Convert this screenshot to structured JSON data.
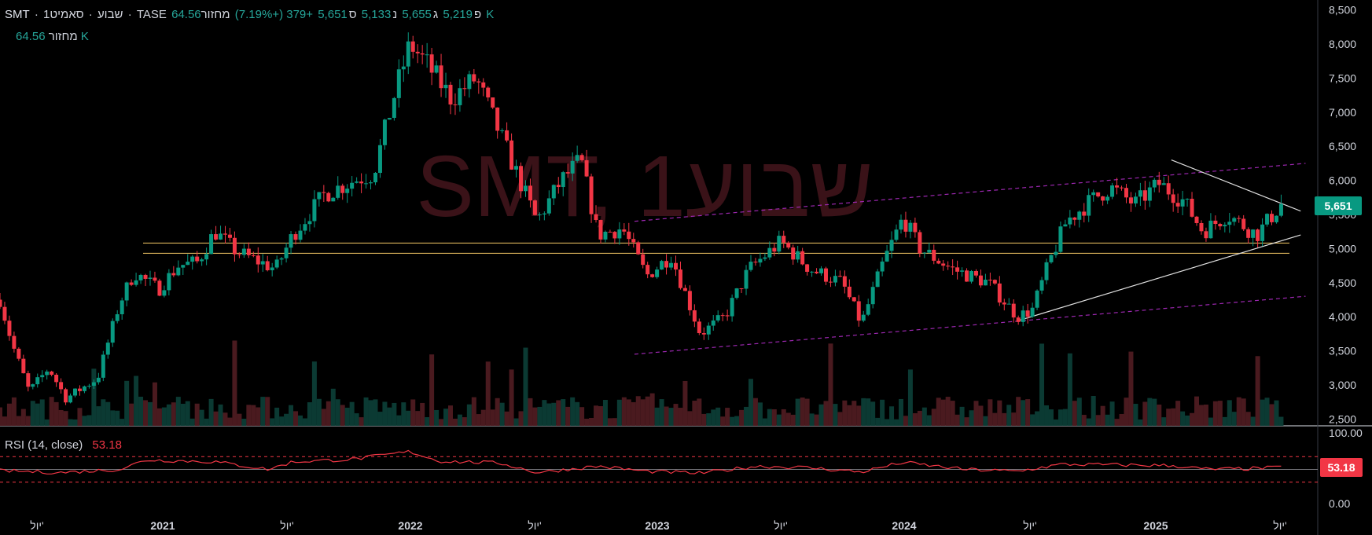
{
  "legend": {
    "symbol": "SMT",
    "interval": "1שבוע",
    "name": "סאמיט",
    "exchange": "TASE",
    "open_label": "פ",
    "open": "5,219",
    "high_label": "ג",
    "high": "5,655",
    "low_label": "נ",
    "low": "5,133",
    "close_label": "ס",
    "close": "5,651",
    "change": "+379 (+7.19%)",
    "volume_label": "מחזור",
    "volume": "64.56 K"
  },
  "volume_legend": {
    "label": "מחזור",
    "value": "64.56 K"
  },
  "rsi_legend": {
    "label": "RSI (14, close)",
    "value": "53.18"
  },
  "watermark": "SMT, 1שבוע",
  "price_tag": "5,651",
  "rsi_tag": "53.18",
  "colors": {
    "up": "#089981",
    "down": "#f23645",
    "support": "#d9b25a",
    "channel": "#9c27b0",
    "trend": "#e0e0e0",
    "rsi_line": "#f23645",
    "background": "#000000"
  },
  "chart_data": {
    "type": "candlestick",
    "price_axis_ticks": [
      "8,500",
      "8,000",
      "7,500",
      "7,000",
      "6,500",
      "6,000",
      "5,500",
      "5,000",
      "4,500",
      "4,000",
      "3,500",
      "3,000",
      "2,500"
    ],
    "rsi_axis_ticks": [
      "100.00",
      "0.00"
    ],
    "time_axis_labels": [
      "יול'",
      "2021",
      "יול'",
      "2022",
      "יול'",
      "2023",
      "יול'",
      "2024",
      "יול'",
      "2025",
      "יול'"
    ],
    "ylim": [
      2400,
      8600
    ],
    "x_range": [
      2020.25,
      2025.65
    ],
    "rsi_levels": [
      70,
      30
    ],
    "horizontal_support": [
      5080,
      4930
    ],
    "anchors": [
      [
        2020.25,
        4250
      ],
      [
        2020.3,
        3600
      ],
      [
        2020.37,
        2900
      ],
      [
        2020.45,
        3250
      ],
      [
        2020.52,
        2800
      ],
      [
        2020.65,
        3100
      ],
      [
        2020.74,
        4200
      ],
      [
        2020.8,
        4650
      ],
      [
        2020.9,
        4400
      ],
      [
        2020.98,
        4750
      ],
      [
        2021.06,
        4800
      ],
      [
        2021.13,
        5250
      ],
      [
        2021.22,
        4950
      ],
      [
        2021.38,
        4700
      ],
      [
        2021.45,
        5200
      ],
      [
        2021.58,
        5800
      ],
      [
        2021.7,
        6000
      ],
      [
        2021.78,
        6100
      ],
      [
        2021.87,
        7300
      ],
      [
        2021.93,
        8000
      ],
      [
        2022.0,
        7700
      ],
      [
        2022.1,
        7200
      ],
      [
        2022.2,
        7500
      ],
      [
        2022.32,
        6500
      ],
      [
        2022.45,
        5400
      ],
      [
        2022.55,
        6000
      ],
      [
        2022.63,
        6300
      ],
      [
        2022.7,
        5200
      ],
      [
        2022.8,
        5300
      ],
      [
        2022.9,
        4600
      ],
      [
        2023.0,
        4900
      ],
      [
        2023.12,
        3750
      ],
      [
        2023.22,
        4000
      ],
      [
        2023.32,
        4700
      ],
      [
        2023.45,
        5100
      ],
      [
        2023.57,
        4700
      ],
      [
        2023.7,
        4500
      ],
      [
        2023.78,
        3900
      ],
      [
        2023.87,
        4800
      ],
      [
        2023.95,
        5450
      ],
      [
        2024.02,
        5000
      ],
      [
        2024.15,
        4700
      ],
      [
        2024.3,
        4500
      ],
      [
        2024.42,
        4000
      ],
      [
        2024.48,
        4100
      ],
      [
        2024.55,
        4800
      ],
      [
        2024.62,
        5400
      ],
      [
        2024.72,
        5700
      ],
      [
        2024.8,
        5900
      ],
      [
        2024.9,
        5650
      ],
      [
        2025.0,
        5950
      ],
      [
        2025.1,
        5700
      ],
      [
        2025.18,
        5250
      ],
      [
        2025.28,
        5500
      ],
      [
        2025.4,
        5200
      ],
      [
        2025.5,
        5651
      ]
    ],
    "rsi_anchors": [
      [
        2020.25,
        48
      ],
      [
        2020.5,
        45
      ],
      [
        2020.74,
        50
      ],
      [
        2020.85,
        65
      ],
      [
        2021.13,
        62
      ],
      [
        2021.35,
        50
      ],
      [
        2021.45,
        62
      ],
      [
        2021.7,
        66
      ],
      [
        2021.93,
        78
      ],
      [
        2022.05,
        63
      ],
      [
        2022.3,
        60
      ],
      [
        2022.45,
        45
      ],
      [
        2022.7,
        55
      ],
      [
        2022.9,
        47
      ],
      [
        2023.12,
        44
      ],
      [
        2023.35,
        55
      ],
      [
        2023.55,
        53
      ],
      [
        2023.78,
        46
      ],
      [
        2023.95,
        61
      ],
      [
        2024.2,
        50
      ],
      [
        2024.42,
        47
      ],
      [
        2024.6,
        58
      ],
      [
        2024.85,
        57
      ],
      [
        2025.05,
        56
      ],
      [
        2025.2,
        50
      ],
      [
        2025.35,
        51
      ],
      [
        2025.5,
        53.18
      ]
    ],
    "channel_upper": [
      [
        2022.85,
        5400
      ],
      [
        2025.6,
        6250
      ]
    ],
    "channel_lower": [
      [
        2022.85,
        3450
      ],
      [
        2025.6,
        4300
      ]
    ],
    "triangle_upper": [
      [
        2025.05,
        6300
      ],
      [
        2025.58,
        5550
      ]
    ],
    "triangle_lower": [
      [
        2024.43,
        3950
      ],
      [
        2025.58,
        5200
      ]
    ]
  }
}
